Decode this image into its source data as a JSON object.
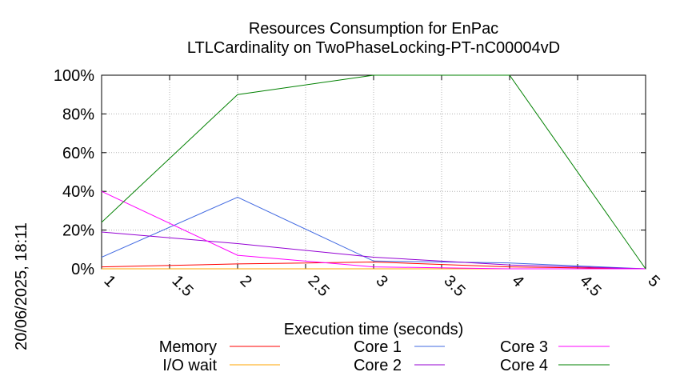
{
  "side_label": "20/06/2025, 18:11",
  "chart_data": {
    "type": "line",
    "title": "Resources Consumption for EnPac",
    "subtitle": "LTLCardinality on TwoPhaseLocking-PT-nC00004vD",
    "xlabel": "Execution time (seconds)",
    "ylabel": "",
    "xlim": [
      1,
      5
    ],
    "ylim": [
      0,
      100
    ],
    "grid": true,
    "legend_position": "bottom",
    "x_ticks": [
      1,
      1.5,
      2,
      2.5,
      3,
      3.5,
      4,
      4.5,
      5
    ],
    "x_tick_labels": [
      "1",
      "1.5",
      "2",
      "2.5",
      "3",
      "3.5",
      "4",
      "4.5",
      "5"
    ],
    "y_ticks": [
      0,
      20,
      40,
      60,
      80,
      100
    ],
    "y_tick_labels": [
      "0%",
      "20%",
      "40%",
      "60%",
      "80%",
      "100%"
    ],
    "x": [
      1,
      2,
      3,
      4,
      5
    ],
    "series": [
      {
        "name": "Memory",
        "color": "#ff0000",
        "values": [
          1,
          2.5,
          3.5,
          1,
          0
        ]
      },
      {
        "name": "I/O wait",
        "color": "#ffa500",
        "values": [
          0,
          0,
          0,
          0,
          0
        ]
      },
      {
        "name": "Core 1",
        "color": "#4169e1",
        "values": [
          6,
          37,
          4,
          3,
          0
        ]
      },
      {
        "name": "Core 2",
        "color": "#9400d3",
        "values": [
          19,
          13,
          6,
          2,
          0
        ]
      },
      {
        "name": "Core 3",
        "color": "#ff00ff",
        "values": [
          40,
          7,
          1,
          0,
          0
        ]
      },
      {
        "name": "Core 4",
        "color": "#008000",
        "values": [
          24,
          90,
          100,
          100,
          0
        ]
      }
    ]
  }
}
